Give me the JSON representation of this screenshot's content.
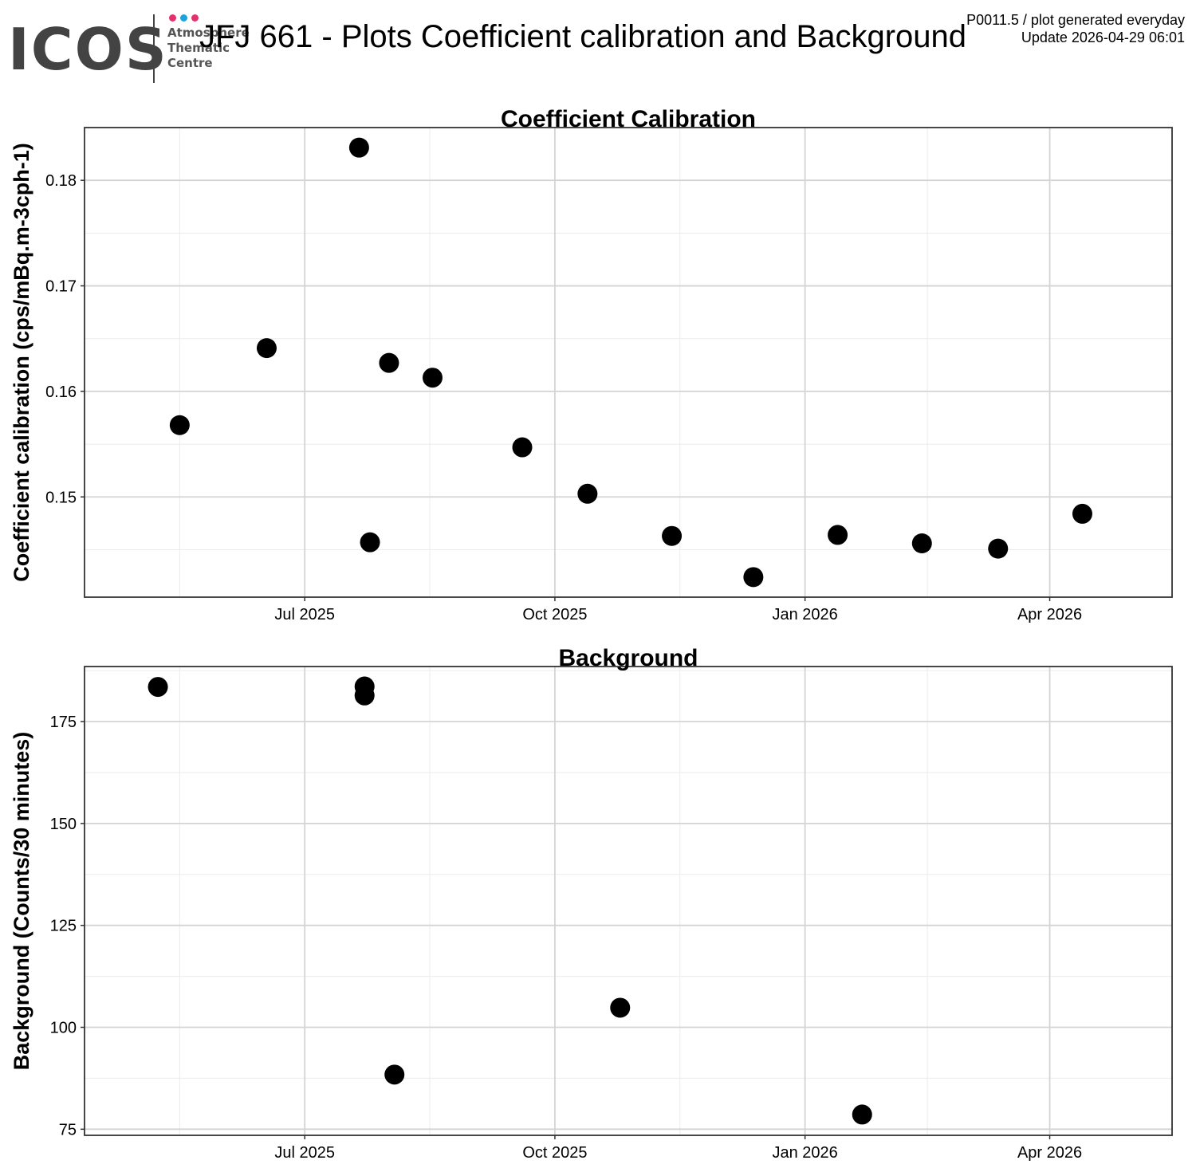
{
  "logo": {
    "wordmark": "ICOS",
    "lines": [
      "Atmosphere",
      "Thematic",
      "Centre"
    ],
    "dot_colors": [
      "#e6306e",
      "#1aa3e0",
      "#e6306e"
    ]
  },
  "header": {
    "title": "JFJ 661 - Plots Coefficient calibration and Background",
    "meta_line1": "P0011.5 / plot generated everyday",
    "meta_line2": "Update  2026-04-29 06:01"
  },
  "chart_data": [
    {
      "type": "scatter",
      "title": "Coefficient Calibration",
      "xlabel": "",
      "ylabel": "Coefficient calibration (cps/mBq.m-3cph-1)",
      "x_ticks": [
        "2025-07-01",
        "2025-10-01",
        "2026-01-01",
        "2026-04-01"
      ],
      "x_tick_labels": [
        "Jul 2025",
        "Oct 2025",
        "Jan 2026",
        "Apr 2026"
      ],
      "xlim": [
        "2025-04-11",
        "2026-05-16"
      ],
      "y_ticks": [
        0.15,
        0.16,
        0.17,
        0.18
      ],
      "y_tick_labels": [
        "0.15",
        "0.16",
        "0.17",
        "0.18"
      ],
      "ylim": [
        0.1405,
        0.185
      ],
      "grid": true,
      "marker_color": "#000000",
      "points": [
        {
          "x": "2025-05-16",
          "y": 0.1568
        },
        {
          "x": "2025-06-17",
          "y": 0.1641
        },
        {
          "x": "2025-07-21",
          "y": 0.1831
        },
        {
          "x": "2025-07-25",
          "y": 0.1457
        },
        {
          "x": "2025-08-01",
          "y": 0.1627
        },
        {
          "x": "2025-08-17",
          "y": 0.1613
        },
        {
          "x": "2025-09-19",
          "y": 0.1547
        },
        {
          "x": "2025-10-13",
          "y": 0.1503
        },
        {
          "x": "2025-11-13",
          "y": 0.1463
        },
        {
          "x": "2025-12-13",
          "y": 0.1424
        },
        {
          "x": "2026-01-13",
          "y": 0.1464
        },
        {
          "x": "2026-02-13",
          "y": 0.1456
        },
        {
          "x": "2026-03-13",
          "y": 0.1451
        },
        {
          "x": "2026-04-13",
          "y": 0.1484
        }
      ]
    },
    {
      "type": "scatter",
      "title": "Background",
      "xlabel": "",
      "ylabel": "Background (Counts/30 minutes)",
      "x_ticks": [
        "2025-07-01",
        "2025-10-01",
        "2026-01-01",
        "2026-04-01"
      ],
      "x_tick_labels": [
        "Jul 2025",
        "Oct 2025",
        "Jan 2026",
        "Apr 2026"
      ],
      "xlim": [
        "2025-04-11",
        "2026-05-16"
      ],
      "y_ticks": [
        75,
        100,
        125,
        150,
        175
      ],
      "y_tick_labels": [
        "75",
        "100",
        "125",
        "150",
        "175"
      ],
      "ylim": [
        73.5,
        188.5
      ],
      "grid": true,
      "marker_color": "#000000",
      "points": [
        {
          "x": "2025-05-08",
          "y": 183.5
        },
        {
          "x": "2025-07-23",
          "y": 183.6
        },
        {
          "x": "2025-07-23",
          "y": 181.4
        },
        {
          "x": "2025-08-03",
          "y": 88.4
        },
        {
          "x": "2025-10-25",
          "y": 104.8
        },
        {
          "x": "2026-01-22",
          "y": 78.6
        }
      ]
    }
  ]
}
